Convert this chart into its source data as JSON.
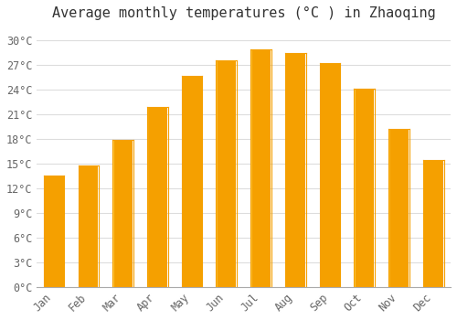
{
  "title": "Average monthly temperatures (°C ) in Zhaoqing",
  "months": [
    "Jan",
    "Feb",
    "Mar",
    "Apr",
    "May",
    "Jun",
    "Jul",
    "Aug",
    "Sep",
    "Oct",
    "Nov",
    "Dec"
  ],
  "temperatures": [
    13.5,
    14.7,
    17.9,
    21.8,
    25.6,
    27.5,
    28.8,
    28.4,
    27.2,
    24.1,
    19.2,
    15.4
  ],
  "bar_color_center": "#FFCC44",
  "bar_color_edge": "#F5A000",
  "background_color": "#FFFFFF",
  "grid_color": "#DDDDDD",
  "yticks": [
    0,
    3,
    6,
    9,
    12,
    15,
    18,
    21,
    24,
    27,
    30
  ],
  "ylim": [
    0,
    31.5
  ],
  "title_fontsize": 11,
  "tick_fontsize": 8.5,
  "font_family": "monospace"
}
